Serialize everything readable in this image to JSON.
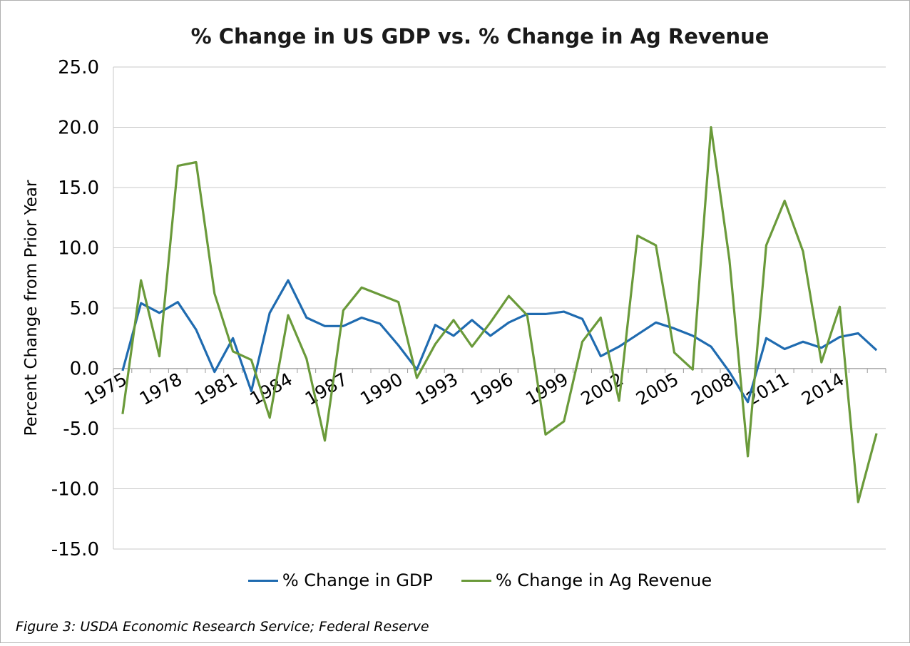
{
  "chart_data": {
    "type": "line",
    "title": "% Change in US GDP vs. % Change in Ag Revenue",
    "xlabel": "",
    "ylabel": "Percent Change from Prior Year",
    "ylim": [
      -15,
      25
    ],
    "yticks": [
      "25.0",
      "20.0",
      "15.0",
      "10.0",
      "5.0",
      "0.0",
      "-5.0",
      "-10.0",
      "-15.0"
    ],
    "x": [
      1975,
      1976,
      1977,
      1978,
      1979,
      1980,
      1981,
      1982,
      1983,
      1984,
      1985,
      1986,
      1987,
      1988,
      1989,
      1990,
      1991,
      1992,
      1993,
      1994,
      1995,
      1996,
      1997,
      1998,
      1999,
      2000,
      2001,
      2002,
      2003,
      2004,
      2005,
      2006,
      2007,
      2008,
      2009,
      2010,
      2011,
      2012,
      2013,
      2014,
      2015,
      2016
    ],
    "xtick_labels": [
      "1975",
      "1978",
      "1981",
      "1984",
      "1987",
      "1990",
      "1993",
      "1996",
      "1999",
      "2002",
      "2005",
      "2008",
      "2011",
      "2014"
    ],
    "grid": "horizontal",
    "legend_position": "bottom",
    "series": [
      {
        "name": "% Change in GDP",
        "color": "#1f6bb0",
        "values": [
          -0.2,
          5.4,
          4.6,
          5.5,
          3.2,
          -0.3,
          2.5,
          -1.9,
          4.6,
          7.3,
          4.2,
          3.5,
          3.5,
          4.2,
          3.7,
          1.9,
          -0.1,
          3.6,
          2.7,
          4.0,
          2.7,
          3.8,
          4.5,
          4.5,
          4.7,
          4.1,
          1.0,
          1.8,
          2.8,
          3.8,
          3.3,
          2.7,
          1.8,
          -0.3,
          -2.8,
          2.5,
          1.6,
          2.2,
          1.7,
          2.6,
          2.9,
          1.5
        ]
      },
      {
        "name": "% Change in Ag Revenue",
        "color": "#6a9a3a",
        "values": [
          -3.8,
          7.3,
          1.0,
          16.8,
          17.1,
          6.2,
          1.4,
          0.7,
          -4.1,
          4.4,
          0.8,
          -6.0,
          4.8,
          6.7,
          6.1,
          5.5,
          -0.8,
          2.0,
          4.0,
          1.8,
          3.8,
          6.0,
          4.4,
          -5.5,
          -4.4,
          2.2,
          4.2,
          -2.7,
          11.0,
          10.2,
          1.3,
          -0.1,
          20.0,
          9.0,
          -7.3,
          10.2,
          13.9,
          9.7,
          0.5,
          5.1,
          -11.1,
          -5.4
        ]
      }
    ]
  },
  "caption": "Figure 3: USDA Economic Research Service; Federal Reserve"
}
